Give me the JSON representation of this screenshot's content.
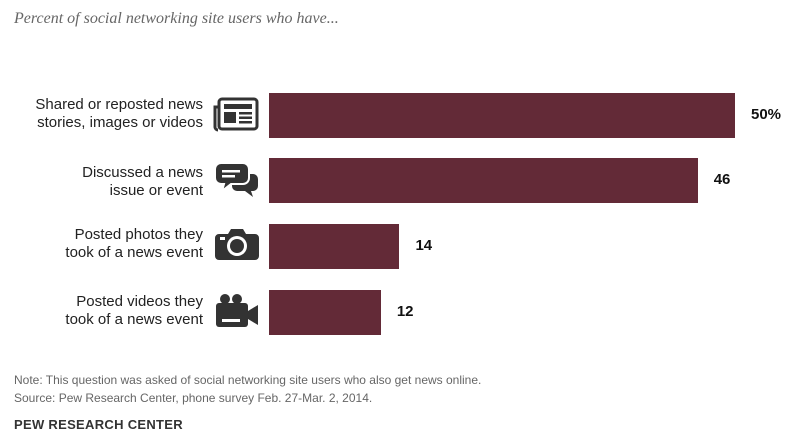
{
  "subtitle": "Percent of social networking site users who have...",
  "chart_data": {
    "type": "bar",
    "orientation": "horizontal",
    "categories": [
      "Shared or reposted news stories, images or videos",
      "Discussed a news issue or event",
      "Posted photos they took of a news event",
      "Posted videos they took of a news event"
    ],
    "values": [
      50,
      46,
      14,
      12
    ],
    "value_labels": [
      "50%",
      "46",
      "14",
      "12"
    ],
    "xlim": [
      0,
      50
    ],
    "bar_color": "#632a37",
    "grid": false,
    "title": "",
    "xlabel": "",
    "ylabel": ""
  },
  "rows": [
    {
      "line1": "Shared or reposted news",
      "line2": "stories, images or videos",
      "icon": "newspaper-icon"
    },
    {
      "line1": "Discussed a news",
      "line2": "issue or event",
      "icon": "speech-bubbles-icon"
    },
    {
      "line1": "Posted photos they",
      "line2": "took of a news event",
      "icon": "camera-icon"
    },
    {
      "line1": "Posted videos they",
      "line2": "took of a news event",
      "icon": "video-camera-icon"
    }
  ],
  "footer": {
    "note": "Note: This question was asked of social networking site users who also get news online.",
    "source": "Source: Pew Research Center, phone survey Feb. 27-Mar. 2, 2014.",
    "org": "PEW RESEARCH CENTER"
  }
}
